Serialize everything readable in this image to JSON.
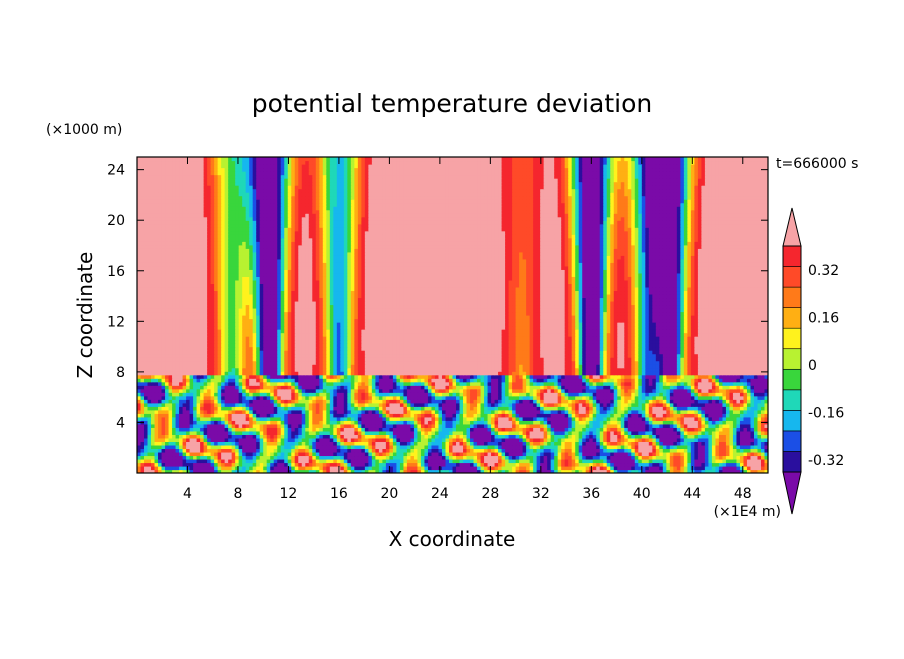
{
  "chart_data": {
    "type": "heatmap",
    "title": "potential temperature deviation",
    "xlabel": "X coordinate",
    "ylabel": "Z coordinate",
    "x_unit": "(×1E4 m)",
    "y_unit": "(×1000 m)",
    "time_label": "t=666000 s",
    "xlim": [
      0,
      50
    ],
    "ylim": [
      0,
      25
    ],
    "x_ticks": [
      4,
      8,
      12,
      16,
      20,
      24,
      28,
      32,
      36,
      40,
      44,
      48
    ],
    "y_ticks": [
      4,
      8,
      12,
      16,
      20,
      24
    ],
    "colorbar": {
      "colors": [
        "#7a0aa8",
        "#2a0f9e",
        "#1b4fe6",
        "#16b7ee",
        "#1fd8b8",
        "#39d63c",
        "#b8f231",
        "#fff21d",
        "#ffaf13",
        "#ff7a19",
        "#ff4a28",
        "#f5262e",
        "#f7a3a6"
      ],
      "labels": [
        "0.32",
        "0.16",
        "0",
        "-0.16",
        "-0.32"
      ],
      "label_levels": [
        0.32,
        0.16,
        0,
        -0.16,
        -0.32
      ],
      "range": [
        -0.4,
        0.4
      ]
    },
    "upper_layer_columns": [
      {
        "x": 7.5,
        "value": 0.0
      },
      {
        "x": 10.5,
        "value": -0.45
      },
      {
        "x": 16.0,
        "value": -0.15
      },
      {
        "x": 30.5,
        "value": 0.25
      },
      {
        "x": 36.0,
        "value": -0.45
      },
      {
        "x": 40.5,
        "value": -0.12
      },
      {
        "x": 42.3,
        "value": -0.35
      }
    ]
  }
}
